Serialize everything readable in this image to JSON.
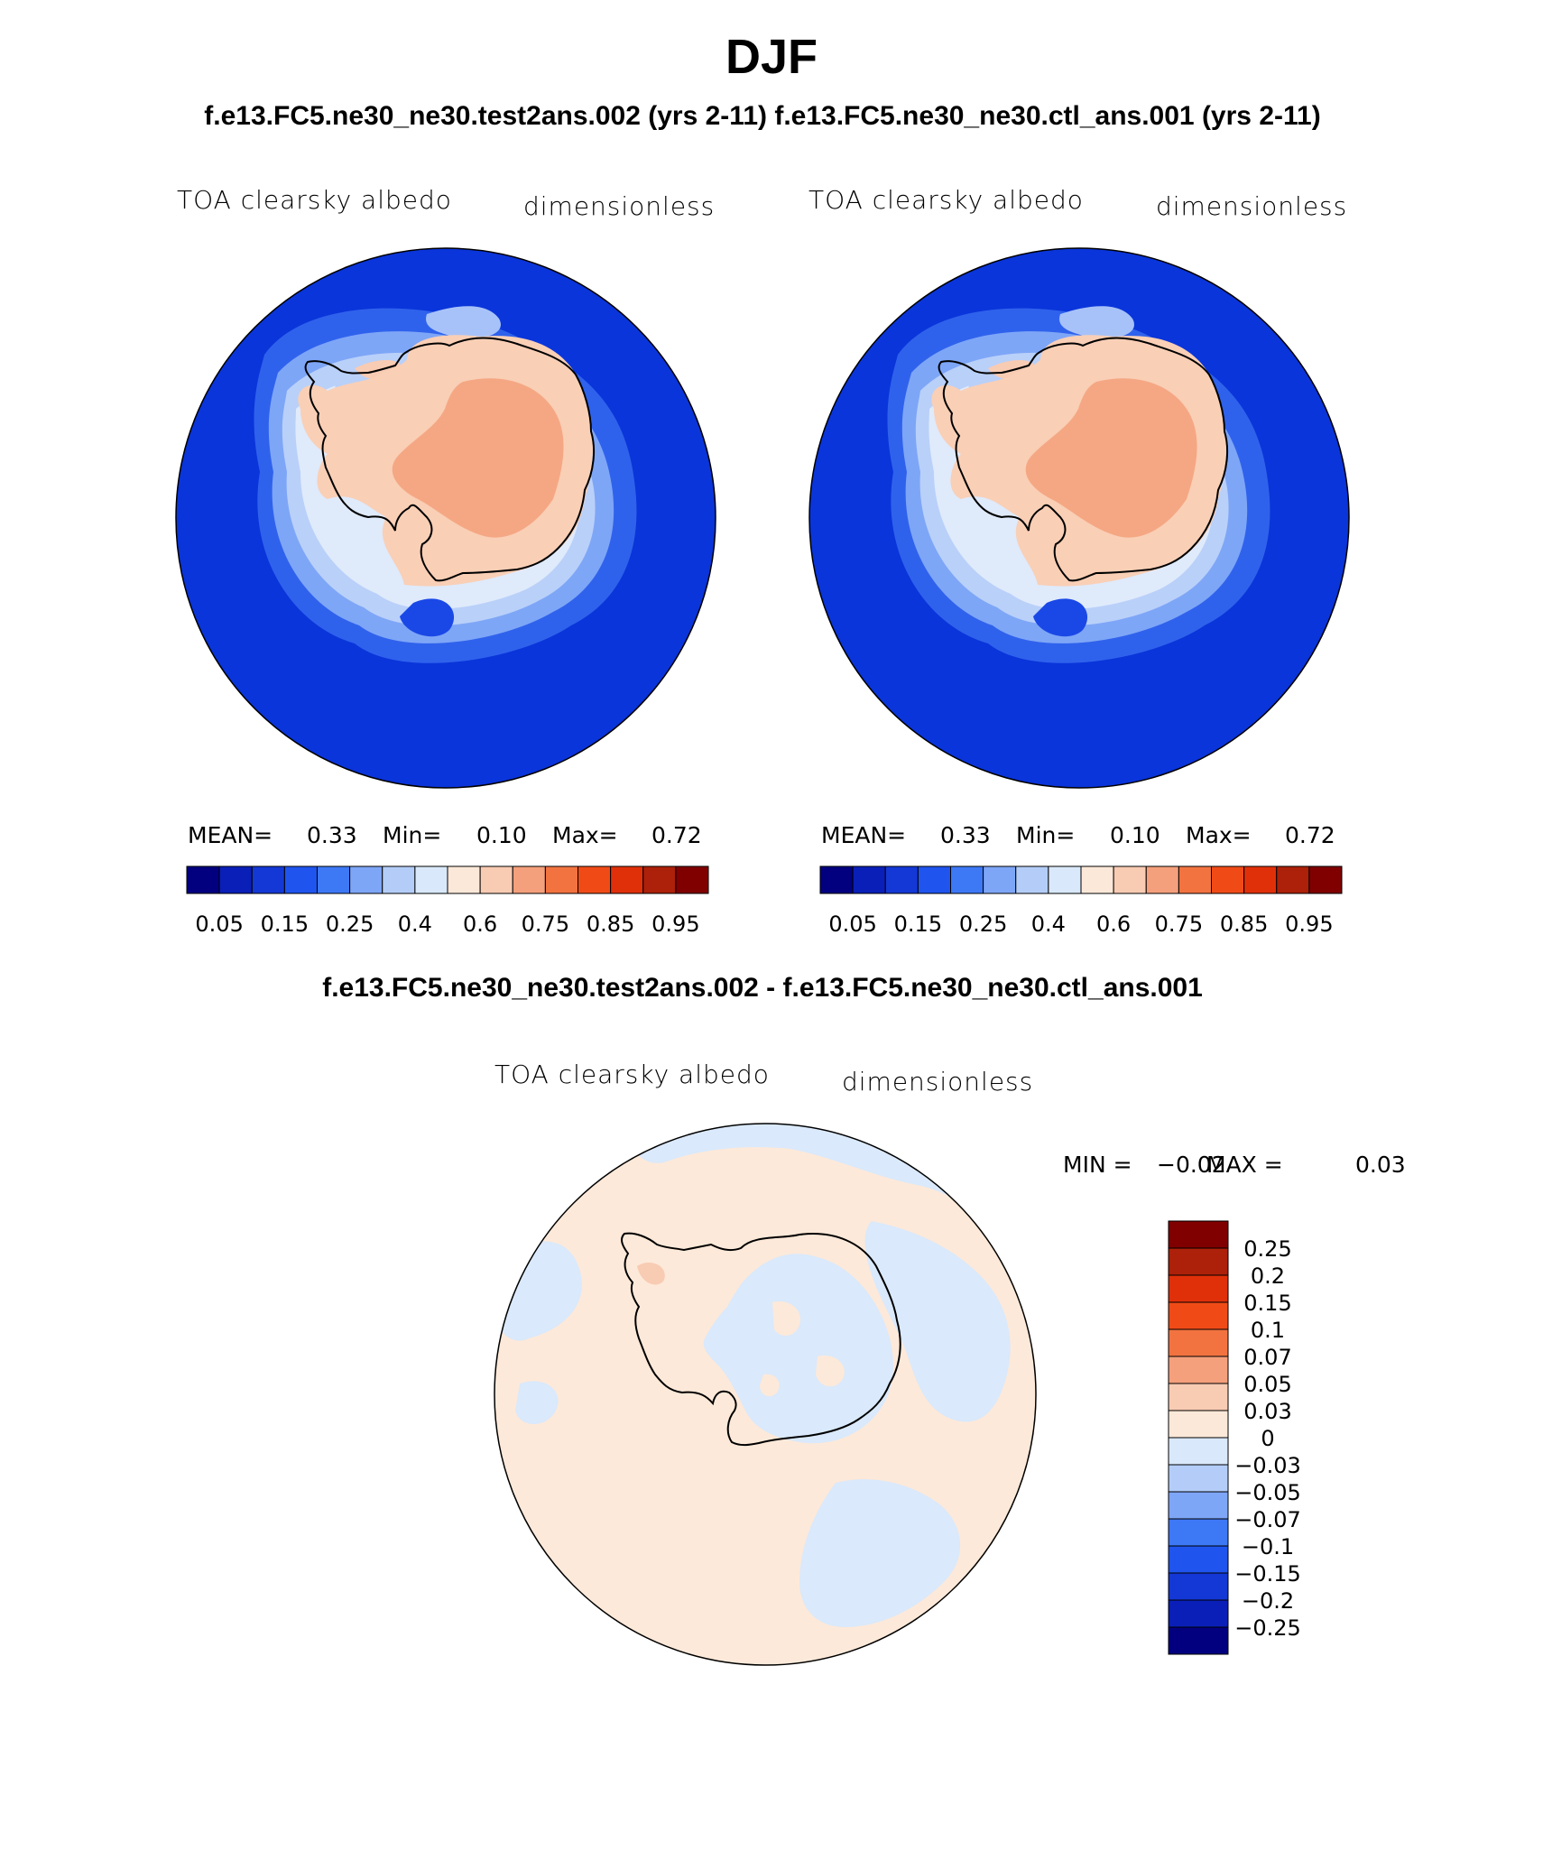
{
  "title": "DJF",
  "subtitle": "f.e13.FC5.ne30_ne30.test2ans.002 (yrs 2-11)   f.e13.FC5.ne30_ne30.ctl_ans.001 (yrs 2-11)",
  "difference_title": "f.e13.FC5.ne30_ne30.test2ans.002 - f.e13.FC5.ne30_ne30.ctl_ans.001",
  "panels": [
    {
      "variable": "TOA clearsky albedo",
      "units": "dimensionless",
      "mean_label": "MEAN=",
      "mean": "0.33",
      "min_label": "Min=",
      "min": "0.10",
      "max_label": "Max=",
      "max": "0.72"
    },
    {
      "variable": "TOA clearsky albedo",
      "units": "dimensionless",
      "mean_label": "MEAN=",
      "mean": "0.33",
      "min_label": "Min=",
      "min": "0.10",
      "max_label": "Max=",
      "max": "0.72"
    }
  ],
  "difference_panel": {
    "variable": "TOA clearsky albedo",
    "units": "dimensionless",
    "min_label": "MIN =",
    "min": "−0.02",
    "max_label": "MAX =",
    "max": "0.03"
  },
  "colorbar": {
    "ticks": [
      "0.05",
      "0.15",
      "0.25",
      "0.4",
      "0.6",
      "0.75",
      "0.85",
      "0.95"
    ],
    "colors": [
      "#02007f",
      "#0a1fb8",
      "#1438d6",
      "#1f55ee",
      "#3d78f5",
      "#7ea6f7",
      "#b3cdf8",
      "#d9e8fa",
      "#fce8d8",
      "#f8cbb3",
      "#f4a07c",
      "#f27340",
      "#f04b17",
      "#e0300a",
      "#ad2009",
      "#800000"
    ]
  },
  "diff_colorbar": {
    "labels": [
      "0.25",
      "0.2",
      "0.15",
      "0.1",
      "0.07",
      "0.05",
      "0.03",
      "0",
      "−0.03",
      "−0.05",
      "−0.07",
      "−0.1",
      "−0.15",
      "−0.2",
      "−0.25"
    ],
    "colors": [
      "#800000",
      "#ad2009",
      "#e0300a",
      "#f04b17",
      "#f27340",
      "#f4a07c",
      "#f8cbb3",
      "#fce8d8",
      "#d9e8fa",
      "#b3cdf8",
      "#7ea6f7",
      "#3d78f5",
      "#1f55ee",
      "#1438d6",
      "#0a1fb8",
      "#02007f"
    ]
  }
}
